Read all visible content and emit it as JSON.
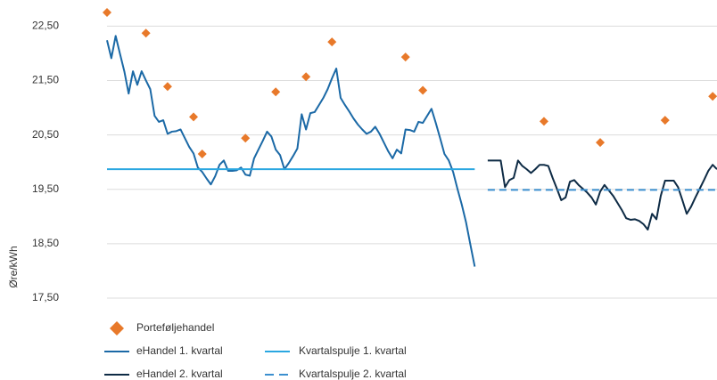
{
  "chart_data": {
    "type": "line",
    "y_label": "Øre/kWh",
    "xlim": [
      0,
      141
    ],
    "ylim": [
      17.5,
      22.8
    ],
    "yticks": [
      {
        "value": 17.5,
        "label": "17,50"
      },
      {
        "value": 18.5,
        "label": "18,50"
      },
      {
        "value": 19.5,
        "label": "19,50"
      },
      {
        "value": 20.5,
        "label": "20,50"
      },
      {
        "value": 21.5,
        "label": "21,50"
      },
      {
        "value": 22.5,
        "label": "22,50"
      }
    ],
    "grid": true,
    "series": [
      {
        "name": "Porteføljehandel",
        "type": "scatter",
        "color": "#e8792a",
        "x": [
          0,
          9,
          14,
          20,
          22,
          32,
          39,
          46,
          52,
          69,
          73,
          101,
          114,
          129,
          140
        ],
        "values": [
          22.75,
          22.37,
          21.39,
          20.83,
          20.15,
          20.44,
          21.29,
          21.57,
          22.21,
          21.93,
          21.32,
          20.75,
          20.36,
          20.77,
          21.21
        ]
      },
      {
        "name": "eHandel 1. kvartal",
        "type": "line",
        "color": "#1b69a6",
        "x": [
          0,
          1,
          2,
          3,
          4,
          5,
          6,
          7,
          8,
          9,
          10,
          11,
          12,
          13,
          14,
          15,
          16,
          17,
          18,
          19,
          20,
          21,
          22,
          23,
          24,
          25,
          26,
          27,
          28,
          29,
          30,
          31,
          32,
          33,
          34,
          35,
          36,
          37,
          38,
          39,
          40,
          41,
          42,
          43,
          44,
          45,
          46,
          47,
          48,
          49,
          50,
          51,
          52,
          53,
          54,
          55,
          56,
          57,
          58,
          59,
          60,
          61,
          62,
          63,
          64,
          65,
          66,
          67,
          68,
          69,
          70,
          71,
          72,
          73,
          74,
          75,
          76,
          77,
          78,
          79,
          80,
          81,
          82,
          83,
          84,
          85
        ],
        "values": [
          22.24,
          21.91,
          22.32,
          21.99,
          21.67,
          21.26,
          21.67,
          21.42,
          21.67,
          21.5,
          21.34,
          20.85,
          20.74,
          20.77,
          20.52,
          20.56,
          20.57,
          20.6,
          20.44,
          20.28,
          20.16,
          19.9,
          19.82,
          19.7,
          19.59,
          19.74,
          19.95,
          20.03,
          19.84,
          19.84,
          19.85,
          19.9,
          19.77,
          19.75,
          20.07,
          20.23,
          20.39,
          20.56,
          20.47,
          20.23,
          20.13,
          19.87,
          19.98,
          20.11,
          20.25,
          20.88,
          20.6,
          20.9,
          20.92,
          21.05,
          21.18,
          21.34,
          21.54,
          21.72,
          21.18,
          21.05,
          20.93,
          20.8,
          20.69,
          20.6,
          20.52,
          20.56,
          20.65,
          20.52,
          20.36,
          20.2,
          20.07,
          20.23,
          20.16,
          20.6,
          20.59,
          20.56,
          20.74,
          20.72,
          20.85,
          20.98,
          20.72,
          20.44,
          20.15,
          20.03,
          19.82,
          19.51,
          19.22,
          18.89,
          18.48,
          18.08
        ]
      },
      {
        "name": "Kvartalspulje 1. kvartal",
        "type": "line",
        "color": "#2aa7e1",
        "x": [
          0,
          85
        ],
        "values": [
          19.87,
          19.87
        ]
      },
      {
        "name": "eHandel 2. kvartal",
        "type": "line",
        "color": "#0e2b45",
        "x": [
          88,
          89,
          90,
          91,
          92,
          93,
          94,
          95,
          96,
          97,
          98,
          99,
          100,
          101,
          102,
          103,
          104,
          105,
          106,
          107,
          108,
          109,
          110,
          111,
          112,
          113,
          114,
          115,
          116,
          117,
          118,
          119,
          120,
          121,
          122,
          123,
          124,
          125,
          126,
          127,
          128,
          129,
          130,
          131,
          132,
          133,
          134,
          135,
          136,
          137,
          138,
          139,
          140,
          141
        ],
        "values": [
          20.03,
          20.03,
          20.03,
          20.03,
          19.54,
          19.67,
          19.71,
          20.03,
          19.93,
          19.87,
          19.8,
          19.87,
          19.95,
          19.95,
          19.93,
          19.71,
          19.51,
          19.3,
          19.35,
          19.64,
          19.67,
          19.58,
          19.51,
          19.44,
          19.35,
          19.22,
          19.46,
          19.58,
          19.48,
          19.38,
          19.25,
          19.12,
          18.97,
          18.94,
          18.95,
          18.92,
          18.86,
          18.76,
          19.05,
          18.95,
          19.38,
          19.66,
          19.66,
          19.66,
          19.54,
          19.3,
          19.05,
          19.18,
          19.35,
          19.51,
          19.67,
          19.84,
          19.95,
          19.87
        ]
      },
      {
        "name": "Kvartalspulje 2. kvartal",
        "type": "line",
        "color": "#3b8fcf",
        "dashed": true,
        "x": [
          88,
          141
        ],
        "values": [
          19.49,
          19.49
        ]
      }
    ]
  }
}
